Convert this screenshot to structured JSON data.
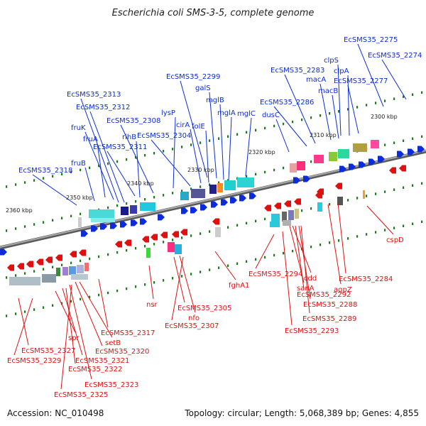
{
  "title": "Escherichia coli SMS-3-5, complete genome",
  "accession": "Accession: NC_010498",
  "topology": "Topology: circular; Length: 5,068,389 bp; Genes: 4,855",
  "colors": {
    "forward": "#0b2cd8",
    "reverse": "#e01010",
    "backbone": "#808080",
    "ticks": "#1f7a1f"
  },
  "kbp_labels": [
    "2360 kbp",
    "2350 kbp",
    "2340 kbp",
    "2330 kbp",
    "2320 kbp",
    "2310 kbp",
    "2300 kbp"
  ],
  "forward_genes": [
    "EcSMS35_2318",
    "fruB",
    "fruA",
    "fruK",
    "EcSMS35_2313",
    "EcSMS35_2312",
    "EcSMS35_2311",
    "rihB",
    "EcSMS35_2308",
    "lysP",
    "EcSMS35_2304",
    "cirA",
    "folE",
    "mglA",
    "mglB",
    "galS",
    "EcSMS35_2299",
    "mglC",
    "dusC",
    "EcSMS35_2286",
    "EcSMS35_2283",
    "macA",
    "macB",
    "clpS",
    "clpA",
    "EcSMS35_2277",
    "EcSMS35_2275",
    "EcSMS35_2274"
  ],
  "reverse_genes": [
    "EcSMS35_2327",
    "EcSMS35_2329",
    "spr",
    "EcSMS35_2321",
    "EcSMS35_2322",
    "EcSMS35_2323",
    "EcSMS35_2325",
    "EcSMS35_2320",
    "setB",
    "EcSMS35_2317",
    "nsr",
    "EcSMS35_2305",
    "nfo",
    "EcSMS35_2307",
    "fghA1",
    "EcSMS35_2294",
    "sanA",
    "cdd",
    "EcSMS35_2292",
    "EcSMS35_2288",
    "EcSMS35_2289",
    "EcSMS35_2293",
    "aqpZ",
    "EcSMS35_2284",
    "cspD"
  ]
}
